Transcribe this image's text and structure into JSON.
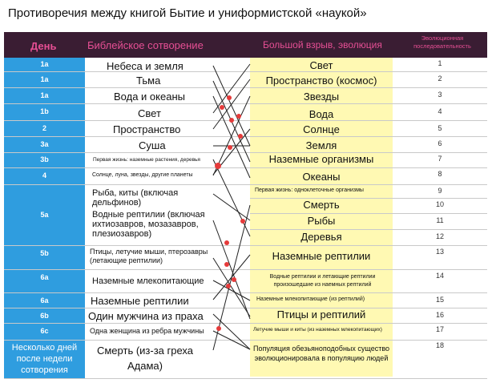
{
  "title": "Противоречия между книгой Бытие и униформистской «наукой»",
  "header": {
    "day": "День",
    "biblical": "Библейское сотворение",
    "bigbang": "Большой взрыв, эволюция",
    "sequence": "Эволюционная последовательность"
  },
  "rows": [
    {
      "day": "1a",
      "bib": "Небеса и земля",
      "big": "Свет",
      "seq": "1"
    },
    {
      "day": "1a",
      "bib": "Тьма",
      "big": "Пространство (космос)",
      "seq": "2"
    },
    {
      "day": "1a",
      "bib": "Вода и океаны",
      "big": "Звезды",
      "seq": "3"
    },
    {
      "day": "1b",
      "bib": "Свет",
      "big": "Вода",
      "seq": "4"
    },
    {
      "day": "2",
      "bib": "Пространство",
      "big": "Солнце",
      "seq": "5"
    },
    {
      "day": "3a",
      "bib": "Суша",
      "big": "Земля",
      "seq": "6"
    },
    {
      "day": "3b",
      "bib": "Первая жизнь: наземные растения, деревья",
      "big": "Наземные организмы",
      "seq": "7"
    },
    {
      "day": "4",
      "bib": "Солнце, луна, звезды, другие планеты",
      "big": "Океаны",
      "seq": "8"
    },
    {
      "day": "5a",
      "bib": "Рыба, киты (включая дельфинов)",
      "big": "Первая жизнь: одноклеточные организмы",
      "seq": "9"
    },
    {
      "day": "",
      "bib": "Водные рептилии (включая ихтиозавров, мозазавров, плезиозавров)",
      "big": "Смерть",
      "seq": "10"
    },
    {
      "day": "",
      "bib": "",
      "big": "Рыбы",
      "seq": "11"
    },
    {
      "day": "",
      "bib": "",
      "big": "Деревья",
      "seq": "12"
    },
    {
      "day": "5b",
      "bib": "Птицы, летучие мыши, птерозавры (летающие рептилии)",
      "big": "Наземные рептилии",
      "seq": "13"
    },
    {
      "day": "6a",
      "bib": "Наземные млекопитающие",
      "big": "Водные рептилии и летающие рептилии произошедшие из наемных рептилий",
      "seq": "14"
    },
    {
      "day": "6a",
      "bib": "Наземные рептилии",
      "big": "Наземные млекопитающие (из рептилий)",
      "seq": "15"
    },
    {
      "day": "6b",
      "bib": "Один мужчина из праха",
      "big": "Птицы и рептилий",
      "seq": "16"
    },
    {
      "day": "6c",
      "bib": "Одна женщина из ребра мужчины",
      "big": "Летучие мыши и киты (из наземных млекопитающих)",
      "seq": "17"
    },
    {
      "day": "Несколько дней после недели сотворения",
      "bib": "Смерть (из-за греха Адама)",
      "big": "Популяция обезьяноподобных существо эволюционировала в популяцию людей",
      "seq": "18"
    }
  ]
}
